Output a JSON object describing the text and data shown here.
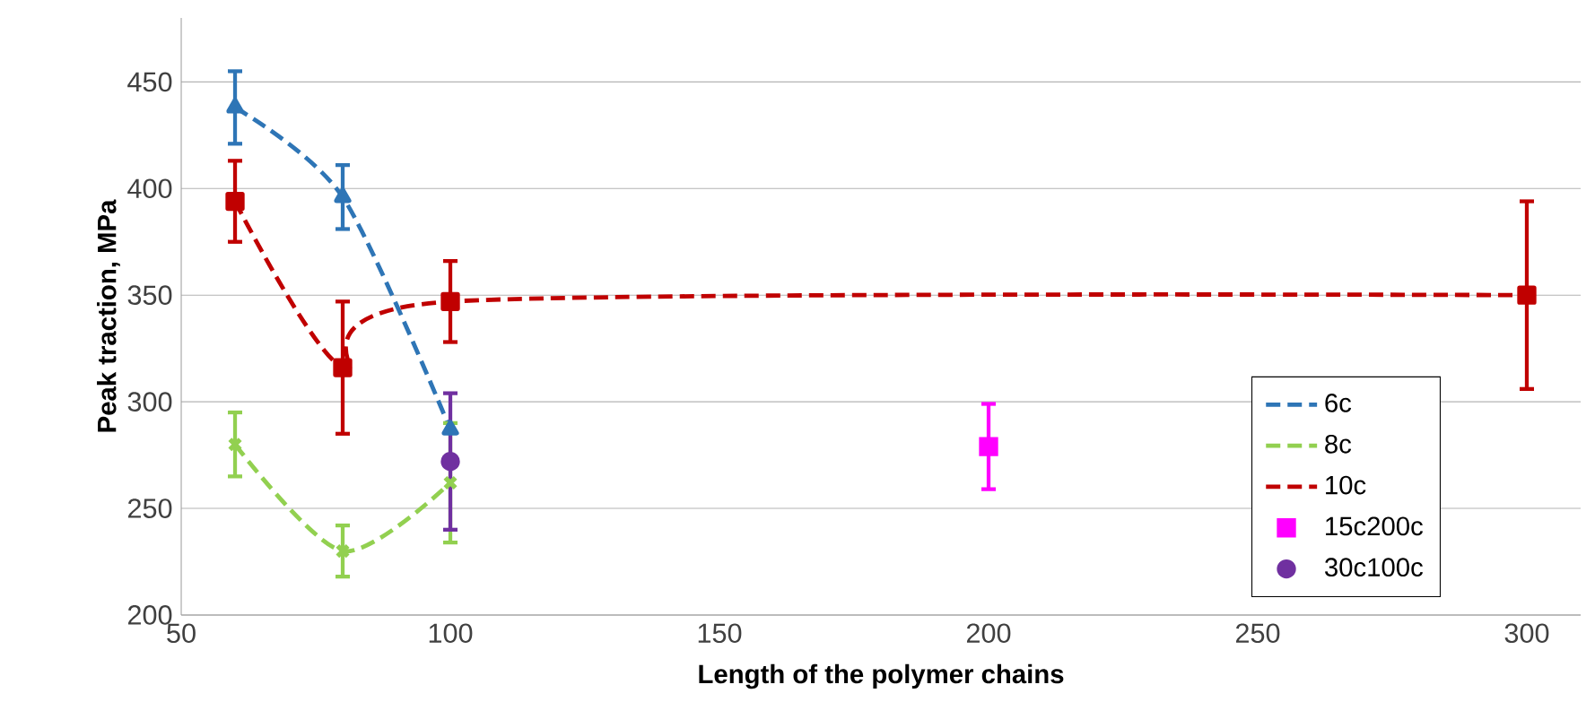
{
  "chart_data": {
    "type": "line",
    "xlabel": "Length of  the polymer chains",
    "ylabel": "Peak traction, MPa",
    "xlim": [
      50,
      310
    ],
    "xticks": [
      50,
      100,
      150,
      200,
      250,
      300
    ],
    "ylim": [
      200,
      480
    ],
    "yticks": [
      200,
      250,
      300,
      350,
      400,
      450
    ],
    "grid": "y",
    "legend": "bottom right",
    "line_style": "dashed",
    "series": [
      {
        "name": "6c",
        "marker": "triangle",
        "color": "#2e75b6",
        "x": [
          60,
          80,
          100
        ],
        "values": [
          438,
          396,
          287
        ],
        "errors": [
          17,
          15,
          null
        ]
      },
      {
        "name": "8c",
        "marker": "cross",
        "color": "#92d050",
        "x": [
          60,
          80,
          100
        ],
        "values": [
          280,
          230,
          262
        ],
        "errors": [
          15,
          12,
          28
        ]
      },
      {
        "name": "10c",
        "marker": "square",
        "color": "#c00000",
        "x": [
          60,
          80,
          100,
          300
        ],
        "values": [
          394,
          316,
          347,
          350
        ],
        "errors": [
          19,
          31,
          19,
          44
        ]
      },
      {
        "name": "15c200c",
        "type": "scatter",
        "marker": "square",
        "color": "#ff00ff",
        "x": [
          200
        ],
        "values": [
          279
        ],
        "errors": [
          20
        ]
      },
      {
        "name": "30c100c",
        "type": "scatter",
        "marker": "circle",
        "color": "#7030a0",
        "x": [
          100
        ],
        "values": [
          272
        ],
        "errors": [
          32
        ]
      }
    ]
  }
}
